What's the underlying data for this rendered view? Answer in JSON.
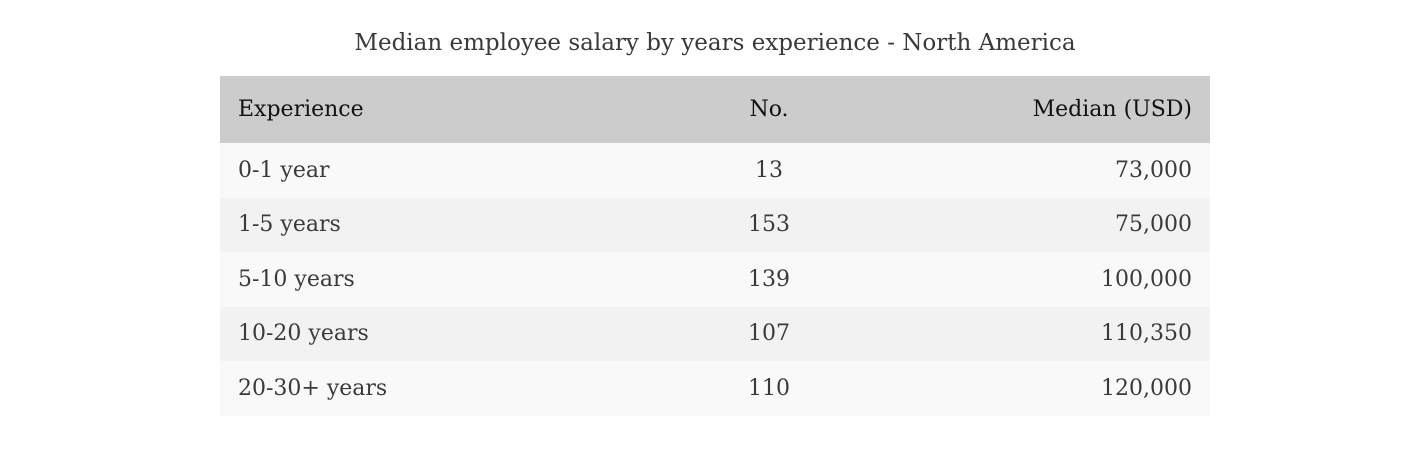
{
  "caption": "Median employee salary by years experience - North America",
  "table": {
    "headers": {
      "experience": "Experience",
      "count": "No.",
      "median": "Median (USD)"
    },
    "rows": [
      {
        "experience": "0-1 year",
        "count": "13",
        "median": "73,000"
      },
      {
        "experience": "1-5 years",
        "count": "153",
        "median": "75,000"
      },
      {
        "experience": "5-10 years",
        "count": "139",
        "median": "100,000"
      },
      {
        "experience": "10-20 years",
        "count": "107",
        "median": "110,350"
      },
      {
        "experience": "20-30+ years",
        "count": "110",
        "median": "120,000"
      }
    ]
  },
  "colors": {
    "header_background": "#cccccc",
    "row_odd_background": "#f9f9f9",
    "row_even_background": "#f2f2f2",
    "text": "#3a3a3a"
  }
}
